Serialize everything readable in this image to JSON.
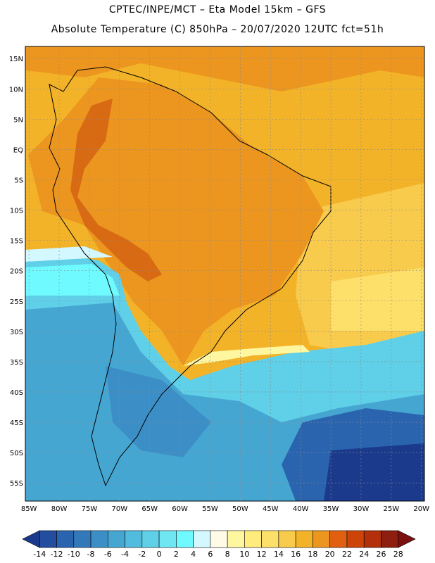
{
  "header": {
    "line1": "CPTEC/INPE/MCT –  Eta Model 15km – GFS",
    "line2": "Absolute Temperature (C) 850hPa – 20/07/2020 12UTC fct=51h"
  },
  "map": {
    "lat_labels": [
      "15N",
      "10N",
      "5N",
      "EQ",
      "5S",
      "10S",
      "15S",
      "20S",
      "25S",
      "30S",
      "35S",
      "40S",
      "45S",
      "50S",
      "55S"
    ],
    "lon_labels": [
      "85W",
      "80W",
      "75W",
      "70W",
      "65W",
      "60W",
      "55W",
      "50W",
      "45W",
      "40W",
      "35W",
      "30W",
      "25W",
      "20W"
    ],
    "lat_values": [
      15,
      10,
      5,
      0,
      -5,
      -10,
      -15,
      -20,
      -25,
      -30,
      -35,
      -40,
      -45,
      -50,
      -55
    ],
    "lon_values": [
      -85,
      -80,
      -75,
      -70,
      -65,
      -60,
      -55,
      -50,
      -45,
      -40,
      -35,
      -30,
      -25,
      -20
    ],
    "extent": {
      "lon_min": -85.6,
      "lon_max": -19.5,
      "lat_min": -58.0,
      "lat_max": 17.0
    }
  },
  "colorbar": {
    "labels": [
      "-14",
      "-12",
      "-10",
      "-8",
      "-6",
      "-4",
      "-2",
      "0",
      "2",
      "4",
      "6",
      "8",
      "10",
      "12",
      "14",
      "16",
      "18",
      "20",
      "22",
      "24",
      "26",
      "28"
    ],
    "colors": [
      "#1b3a8c",
      "#234d9e",
      "#2a64af",
      "#3379ba",
      "#3c8fc6",
      "#46a6d2",
      "#52bcde",
      "#5fd0e8",
      "#6fe6f2",
      "#6ffaff",
      "#d4f8ff",
      "#fffbe6",
      "#fff7a0",
      "#ffec7c",
      "#fde06a",
      "#f8cb4d",
      "#f3b328",
      "#ec9620",
      "#e06010",
      "#cc4408",
      "#b2300a",
      "#8e1e10",
      "#7a1010"
    ]
  }
}
